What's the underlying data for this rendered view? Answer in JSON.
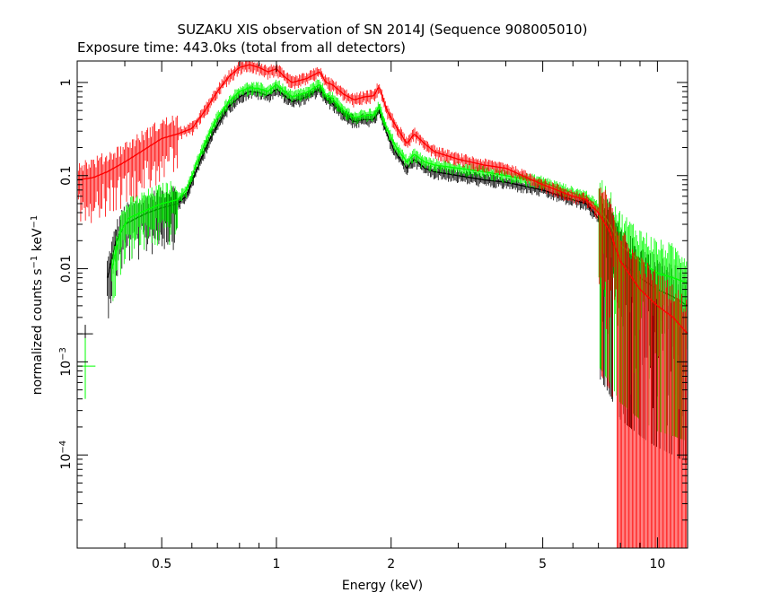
{
  "chart_data": {
    "type": "line",
    "title": "SUZAKU XIS observation of SN 2014J (Sequence 908005010)",
    "subtitle": "Exposure time: 443.0ks (total from all detectors)",
    "xlabel": "Energy (keV)",
    "ylabel": {
      "prefix": "normalized counts s",
      "sup1": "−1",
      "mid": " keV",
      "sup2": "−1"
    },
    "x_scale": "log",
    "y_scale": "log",
    "xlim": [
      0.3,
      12
    ],
    "ylim": [
      1e-05,
      1.7
    ],
    "x_ticks": [
      {
        "value": 0.5,
        "label": "0.5"
      },
      {
        "value": 1,
        "label": "1"
      },
      {
        "value": 2,
        "label": "2"
      },
      {
        "value": 5,
        "label": "5"
      },
      {
        "value": 10,
        "label": "10"
      }
    ],
    "y_ticks": [
      {
        "value": 1,
        "label": "1"
      },
      {
        "value": 0.1,
        "label": "0.1"
      },
      {
        "value": 0.01,
        "label": "0.01"
      },
      {
        "value": 0.001,
        "label": "10",
        "exp": "−3"
      },
      {
        "value": 0.0001,
        "label": "10",
        "exp": "−4"
      }
    ],
    "grid": false,
    "series": [
      {
        "color": "#ff0000",
        "x": [
          0.3,
          0.33,
          0.36,
          0.4,
          0.45,
          0.5,
          0.55,
          0.6,
          0.65,
          0.7,
          0.75,
          0.8,
          0.85,
          0.9,
          0.95,
          1.0,
          1.05,
          1.1,
          1.2,
          1.3,
          1.35,
          1.4,
          1.5,
          1.6,
          1.7,
          1.8,
          1.86,
          1.95,
          2.05,
          2.2,
          2.3,
          2.45,
          2.6,
          3.0,
          3.5,
          4.0,
          5.0,
          6.0,
          6.5,
          7.0,
          7.5,
          8.0,
          9.0,
          10.0,
          11.0,
          12.0
        ],
        "y": [
          0.09,
          0.095,
          0.11,
          0.14,
          0.19,
          0.25,
          0.28,
          0.32,
          0.5,
          0.8,
          1.15,
          1.45,
          1.55,
          1.45,
          1.3,
          1.4,
          1.15,
          1.0,
          1.1,
          1.3,
          1.0,
          0.95,
          0.75,
          0.65,
          0.7,
          0.72,
          0.9,
          0.5,
          0.35,
          0.22,
          0.28,
          0.22,
          0.18,
          0.15,
          0.13,
          0.12,
          0.08,
          0.06,
          0.055,
          0.04,
          0.025,
          0.012,
          0.006,
          0.004,
          0.003,
          0.002
        ]
      },
      {
        "color": "#000000",
        "x": [
          0.36,
          0.38,
          0.4,
          0.43,
          0.46,
          0.5,
          0.55,
          0.58,
          0.62,
          0.66,
          0.7,
          0.75,
          0.8,
          0.85,
          0.9,
          0.95,
          1.0,
          1.05,
          1.1,
          1.2,
          1.3,
          1.35,
          1.4,
          1.5,
          1.6,
          1.7,
          1.8,
          1.86,
          1.95,
          2.05,
          2.2,
          2.3,
          2.45,
          2.6,
          3.0,
          3.5,
          4.0,
          5.0,
          6.0,
          6.5,
          7.0,
          7.5,
          8.0,
          9.0,
          10.0,
          11.0,
          12.0
        ],
        "y": [
          0.008,
          0.02,
          0.03,
          0.035,
          0.04,
          0.045,
          0.05,
          0.06,
          0.12,
          0.22,
          0.35,
          0.55,
          0.7,
          0.8,
          0.78,
          0.72,
          0.85,
          0.72,
          0.62,
          0.7,
          0.85,
          0.65,
          0.6,
          0.45,
          0.38,
          0.4,
          0.4,
          0.5,
          0.28,
          0.18,
          0.12,
          0.15,
          0.12,
          0.11,
          0.1,
          0.09,
          0.085,
          0.07,
          0.055,
          0.05,
          0.035,
          0.022,
          0.012,
          0.008,
          0.006,
          0.005,
          0.004
        ]
      },
      {
        "color": "#00ff00",
        "x": [
          0.37,
          0.39,
          0.41,
          0.44,
          0.47,
          0.5,
          0.55,
          0.58,
          0.62,
          0.66,
          0.7,
          0.75,
          0.8,
          0.85,
          0.9,
          0.95,
          1.0,
          1.05,
          1.1,
          1.2,
          1.3,
          1.35,
          1.4,
          1.5,
          1.6,
          1.7,
          1.8,
          1.86,
          1.95,
          2.05,
          2.2,
          2.3,
          2.45,
          2.6,
          3.0,
          3.5,
          4.0,
          5.0,
          6.0,
          6.5,
          7.0,
          7.5,
          8.0,
          9.0,
          10.0,
          11.0,
          12.0
        ],
        "y": [
          0.01,
          0.025,
          0.035,
          0.04,
          0.045,
          0.05,
          0.055,
          0.07,
          0.14,
          0.26,
          0.42,
          0.62,
          0.8,
          0.88,
          0.86,
          0.8,
          0.95,
          0.8,
          0.7,
          0.78,
          0.95,
          0.72,
          0.68,
          0.5,
          0.42,
          0.44,
          0.45,
          0.55,
          0.32,
          0.21,
          0.14,
          0.17,
          0.14,
          0.13,
          0.12,
          0.11,
          0.1,
          0.085,
          0.065,
          0.06,
          0.045,
          0.03,
          0.018,
          0.012,
          0.009,
          0.008,
          0.007
        ]
      }
    ],
    "typical_error_bars": [
      {
        "color": "#000000",
        "x": 0.315,
        "y": 0.002,
        "xerr": [
          0.3,
          0.33
        ],
        "yerr": [
          0.0015,
          0.0025
        ]
      },
      {
        "color": "#00ff00",
        "x": 0.315,
        "y": 0.0009,
        "xerr": [
          0.3,
          0.335
        ],
        "yerr": [
          0.0004,
          0.0018
        ]
      }
    ]
  }
}
